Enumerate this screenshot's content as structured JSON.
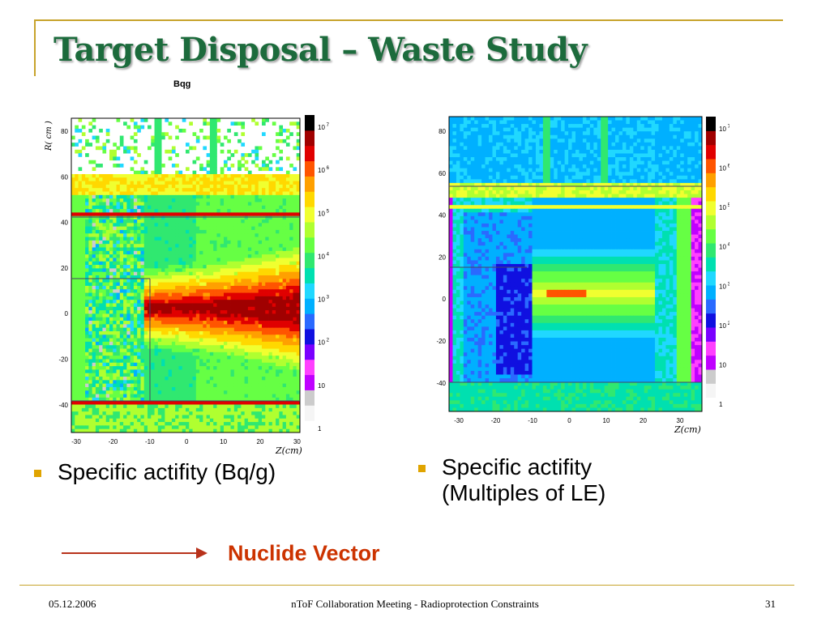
{
  "slide": {
    "title": "Target Disposal – Waste Study",
    "colors": {
      "title": "#1c6b3c",
      "frame": "#c7a32c",
      "bullet": "#e0a400",
      "nuclide": "#cc3300",
      "arrow": "#b8321b"
    }
  },
  "left_plot": {
    "unit_label": "Bqg",
    "y_axis_label": "R( cm )",
    "x_axis_label": "Z(cm)",
    "x_ticks": [
      "-30",
      "-20",
      "-10",
      "0",
      "10",
      "20",
      "30"
    ],
    "y_ticks": [
      "80",
      "60",
      "40",
      "20",
      "0",
      "-20",
      "-40"
    ],
    "colorbar_ticks": [
      {
        "base": "10",
        "exp": "7"
      },
      {
        "base": "10",
        "exp": "6"
      },
      {
        "base": "10",
        "exp": "5"
      },
      {
        "base": "10",
        "exp": "4"
      },
      {
        "base": "10",
        "exp": "3"
      },
      {
        "base": "10",
        "exp": "2"
      },
      {
        "base": "10",
        "exp": ""
      },
      {
        "base": "1",
        "exp": ""
      }
    ]
  },
  "right_plot": {
    "x_axis_label": "Z(cm)",
    "x_ticks": [
      "-30",
      "-20",
      "-10",
      "0",
      "10",
      "20",
      "30"
    ],
    "y_ticks": [
      "80",
      "60",
      "40",
      "20",
      "0",
      "-20",
      "-40"
    ],
    "colorbar_ticks": [
      {
        "base": "10",
        "exp": "7"
      },
      {
        "base": "10",
        "exp": "6"
      },
      {
        "base": "10",
        "exp": "5"
      },
      {
        "base": "10",
        "exp": "4"
      },
      {
        "base": "10",
        "exp": "3"
      },
      {
        "base": "10",
        "exp": "2"
      },
      {
        "base": "10",
        "exp": ""
      },
      {
        "base": "1",
        "exp": ""
      }
    ]
  },
  "bullets": {
    "left": "Specific actifity (Bq/g)",
    "right": "Specific actifity (Multiples of LE)"
  },
  "nuclide_label": "Nuclide Vector",
  "footer": {
    "date": "05.12.2006",
    "center": "nToF Collaboration Meeting - Radioprotection Constraints",
    "page": "31"
  }
}
